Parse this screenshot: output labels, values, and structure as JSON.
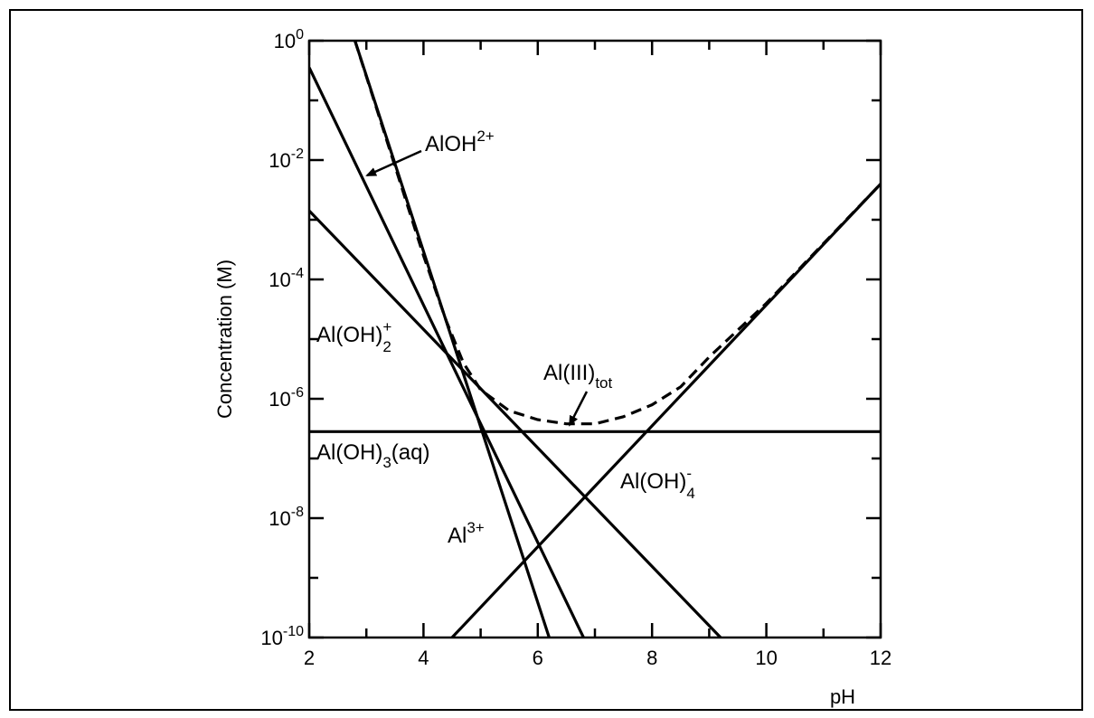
{
  "chart_data": {
    "type": "line",
    "title": "",
    "xlabel": "pH",
    "ylabel": "Concentration (M)",
    "xlim": [
      2,
      12
    ],
    "ylim_log10": [
      -10,
      0
    ],
    "y_scale": "log",
    "grid": false,
    "x_ticks": [
      {
        "value": 2,
        "label": "2"
      },
      {
        "value": 4,
        "label": "4"
      },
      {
        "value": 6,
        "label": "6"
      },
      {
        "value": 8,
        "label": "8"
      },
      {
        "value": 10,
        "label": "10"
      },
      {
        "value": 12,
        "label": "12"
      }
    ],
    "y_ticks": [
      {
        "value": 0,
        "base": "10",
        "exp": "0"
      },
      {
        "value": -2,
        "base": "10",
        "exp": "-2"
      },
      {
        "value": -4,
        "base": "10",
        "exp": "-4"
      },
      {
        "value": -6,
        "base": "10",
        "exp": "-6"
      },
      {
        "value": -8,
        "base": "10",
        "exp": "-8"
      },
      {
        "value": -10,
        "base": "10",
        "exp": "-10"
      }
    ],
    "series": [
      {
        "label": "Al3+",
        "style": "solid",
        "points_log10": [
          [
            2.8,
            0
          ],
          [
            6.2,
            -10
          ]
        ]
      },
      {
        "label": "AlOH2+",
        "style": "solid",
        "points_log10": [
          [
            2,
            -0.45
          ],
          [
            6.8,
            -10
          ]
        ]
      },
      {
        "label": "Al(OH)2+",
        "style": "solid",
        "points_log10": [
          [
            2,
            -2.85
          ],
          [
            9.2,
            -10
          ]
        ]
      },
      {
        "label": "Al(OH)3(aq)",
        "style": "solid",
        "points_log10": [
          [
            2,
            -6.55
          ],
          [
            12,
            -6.55
          ]
        ]
      },
      {
        "label": "Al(OH)4-",
        "style": "solid",
        "points_log10": [
          [
            4.5,
            -10
          ],
          [
            12,
            -2.4
          ]
        ]
      },
      {
        "label": "Al(III)tot",
        "style": "dashed",
        "points_log10": [
          [
            2.8,
            0
          ],
          [
            3.4,
            -1.8
          ],
          [
            4.0,
            -3.6
          ],
          [
            4.4,
            -4.7
          ],
          [
            4.7,
            -5.4
          ],
          [
            5.0,
            -5.85
          ],
          [
            5.5,
            -6.2
          ],
          [
            6.0,
            -6.35
          ],
          [
            6.5,
            -6.42
          ],
          [
            7.0,
            -6.42
          ],
          [
            7.5,
            -6.3
          ],
          [
            8.0,
            -6.1
          ],
          [
            8.5,
            -5.8
          ],
          [
            9.0,
            -5.3
          ],
          [
            10.0,
            -4.4
          ],
          [
            11.0,
            -3.4
          ],
          [
            12.0,
            -2.4
          ]
        ]
      }
    ],
    "annotations": [
      {
        "base": "AlOH",
        "sup": "2+",
        "sub": ""
      },
      {
        "base": "Al(OH)",
        "sup": "+",
        "sub": "2"
      },
      {
        "base": "Al(III)",
        "sup": "",
        "sub": "tot"
      },
      {
        "base": "Al(OH)",
        "sup": "",
        "sub": "3",
        "tail": "(aq)"
      },
      {
        "base": "Al(OH)",
        "sup": "-",
        "sub": "4"
      },
      {
        "base": "Al",
        "sup": "3+",
        "sub": ""
      }
    ]
  }
}
